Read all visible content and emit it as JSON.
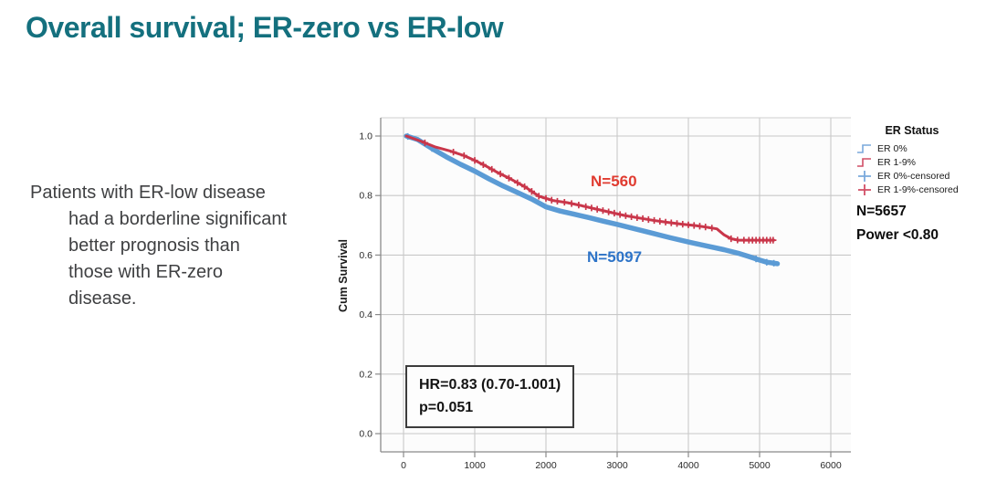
{
  "title": "Overall survival; ER-zero vs ER-low",
  "accent_color": "#14707e",
  "paragraph": {
    "lines": [
      "Patients with ER-low disease",
      "had a borderline significant",
      "better prognosis than",
      "those with ER-zero",
      "disease."
    ]
  },
  "chart_data": {
    "type": "line",
    "subtype": "kaplan-meier-survival",
    "title": "",
    "xlabel": "",
    "ylabel": "Cum Survival",
    "xlim": [
      -320,
      6280
    ],
    "ylim": [
      -0.06,
      1.06
    ],
    "x_ticks": [
      0,
      1000,
      2000,
      3000,
      4000,
      5000,
      6000
    ],
    "y_ticks": [
      0.0,
      0.2,
      0.4,
      0.6,
      0.8,
      1.0
    ],
    "grid": true,
    "legend_position": "right",
    "series": [
      {
        "name": "ER 0%",
        "color": "#5b9bd5",
        "width": 5.5,
        "points": [
          [
            40,
            1.0
          ],
          [
            200,
            0.988
          ],
          [
            400,
            0.958
          ],
          [
            600,
            0.93
          ],
          [
            800,
            0.905
          ],
          [
            1000,
            0.882
          ],
          [
            1200,
            0.856
          ],
          [
            1400,
            0.832
          ],
          [
            1600,
            0.81
          ],
          [
            1800,
            0.788
          ],
          [
            2000,
            0.762
          ],
          [
            2200,
            0.748
          ],
          [
            2400,
            0.737
          ],
          [
            2600,
            0.726
          ],
          [
            2800,
            0.714
          ],
          [
            3000,
            0.703
          ],
          [
            3250,
            0.688
          ],
          [
            3500,
            0.673
          ],
          [
            3750,
            0.658
          ],
          [
            4000,
            0.644
          ],
          [
            4250,
            0.631
          ],
          [
            4500,
            0.618
          ],
          [
            4700,
            0.606
          ],
          [
            4850,
            0.595
          ],
          [
            5000,
            0.583
          ],
          [
            5100,
            0.576
          ],
          [
            5250,
            0.571
          ]
        ],
        "censored_x": [
          60,
          400,
          4950,
          5100,
          5200
        ]
      },
      {
        "name": "ER 1-9%",
        "color": "#c9364a",
        "width": 3,
        "points": [
          [
            40,
            1.0
          ],
          [
            250,
            0.982
          ],
          [
            450,
            0.963
          ],
          [
            650,
            0.95
          ],
          [
            850,
            0.934
          ],
          [
            1000,
            0.918
          ],
          [
            1150,
            0.9
          ],
          [
            1300,
            0.88
          ],
          [
            1500,
            0.856
          ],
          [
            1700,
            0.83
          ],
          [
            1900,
            0.798
          ],
          [
            2100,
            0.783
          ],
          [
            2300,
            0.776
          ],
          [
            2500,
            0.766
          ],
          [
            2700,
            0.755
          ],
          [
            2900,
            0.744
          ],
          [
            3100,
            0.733
          ],
          [
            3300,
            0.725
          ],
          [
            3500,
            0.717
          ],
          [
            3700,
            0.71
          ],
          [
            3900,
            0.704
          ],
          [
            4100,
            0.699
          ],
          [
            4250,
            0.694
          ],
          [
            4400,
            0.688
          ],
          [
            4500,
            0.668
          ],
          [
            4600,
            0.655
          ],
          [
            4700,
            0.65
          ],
          [
            5200,
            0.65
          ]
        ],
        "censored_x": [
          300,
          700,
          850,
          1000,
          1120,
          1240,
          1360,
          1480,
          1600,
          1700,
          1800,
          1900,
          2000,
          2080,
          2160,
          2260,
          2360,
          2460,
          2560,
          2640,
          2720,
          2800,
          2880,
          2960,
          3040,
          3120,
          3200,
          3280,
          3360,
          3440,
          3520,
          3600,
          3680,
          3760,
          3840,
          3920,
          4000,
          4080,
          4160,
          4240,
          4330,
          4600,
          4690,
          4780,
          4850,
          4900,
          4950,
          5000,
          5050,
          5100,
          5150,
          5190
        ]
      }
    ]
  },
  "annotations": {
    "n_low": {
      "text": "N=560",
      "color": "#e03b30"
    },
    "n_zero": {
      "text": "N=5097",
      "color": "#2e74c8"
    },
    "hr_line1": "HR=0.83 (0.70-1.001)",
    "hr_line2": "p=0.051"
  },
  "legend": {
    "header": "ER Status",
    "items": [
      {
        "label": "ER 0%",
        "glyph": "step-line",
        "color": "#7aa9dc"
      },
      {
        "label": "ER 1-9%",
        "glyph": "step-line",
        "color": "#d14e66"
      },
      {
        "label": "ER 0%-censored",
        "glyph": "plus",
        "color": "#7aa9dc"
      },
      {
        "label": "ER 1-9%-censored",
        "glyph": "plus",
        "color": "#d14e66"
      }
    ]
  },
  "stats": {
    "n_total": "N=5657",
    "power": "Power <0.80"
  }
}
